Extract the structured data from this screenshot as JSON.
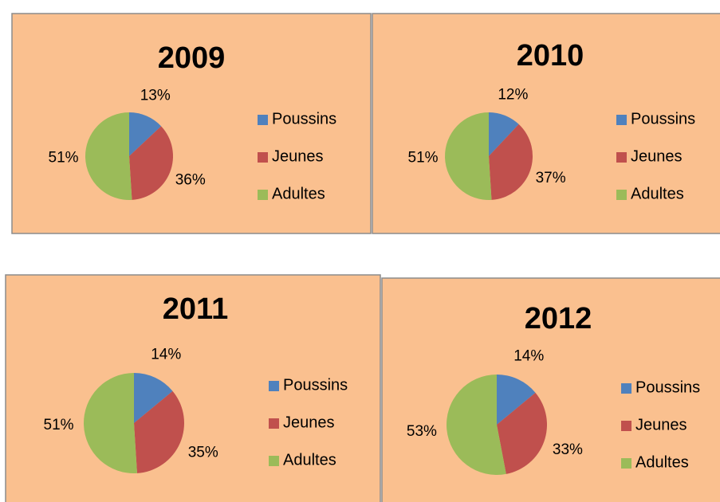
{
  "chart_data": [
    {
      "type": "pie",
      "title": "2009",
      "categories": [
        "Poussins",
        "Jeunes",
        "Adultes"
      ],
      "values": [
        13,
        36,
        51
      ],
      "value_labels": [
        "13%",
        "36%",
        "51%"
      ],
      "colors": [
        "#4f81bd",
        "#c0504d",
        "#9bbb59"
      ],
      "legend": "right"
    },
    {
      "type": "pie",
      "title": "2010",
      "categories": [
        "Poussins",
        "Jeunes",
        "Adultes"
      ],
      "values": [
        12,
        37,
        51
      ],
      "value_labels": [
        "12%",
        "37%",
        "51%"
      ],
      "colors": [
        "#4f81bd",
        "#c0504d",
        "#9bbb59"
      ],
      "legend": "right"
    },
    {
      "type": "pie",
      "title": "2011",
      "categories": [
        "Poussins",
        "Jeunes",
        "Adultes"
      ],
      "values": [
        14,
        35,
        51
      ],
      "value_labels": [
        "14%",
        "35%",
        "51%"
      ],
      "colors": [
        "#4f81bd",
        "#c0504d",
        "#9bbb59"
      ],
      "legend": "right"
    },
    {
      "type": "pie",
      "title": "2012",
      "categories": [
        "Poussins",
        "Jeunes",
        "Adultes"
      ],
      "values": [
        14,
        33,
        53
      ],
      "value_labels": [
        "14%",
        "33%",
        "53%"
      ],
      "colors": [
        "#4f81bd",
        "#c0504d",
        "#9bbb59"
      ],
      "legend": "right"
    }
  ]
}
